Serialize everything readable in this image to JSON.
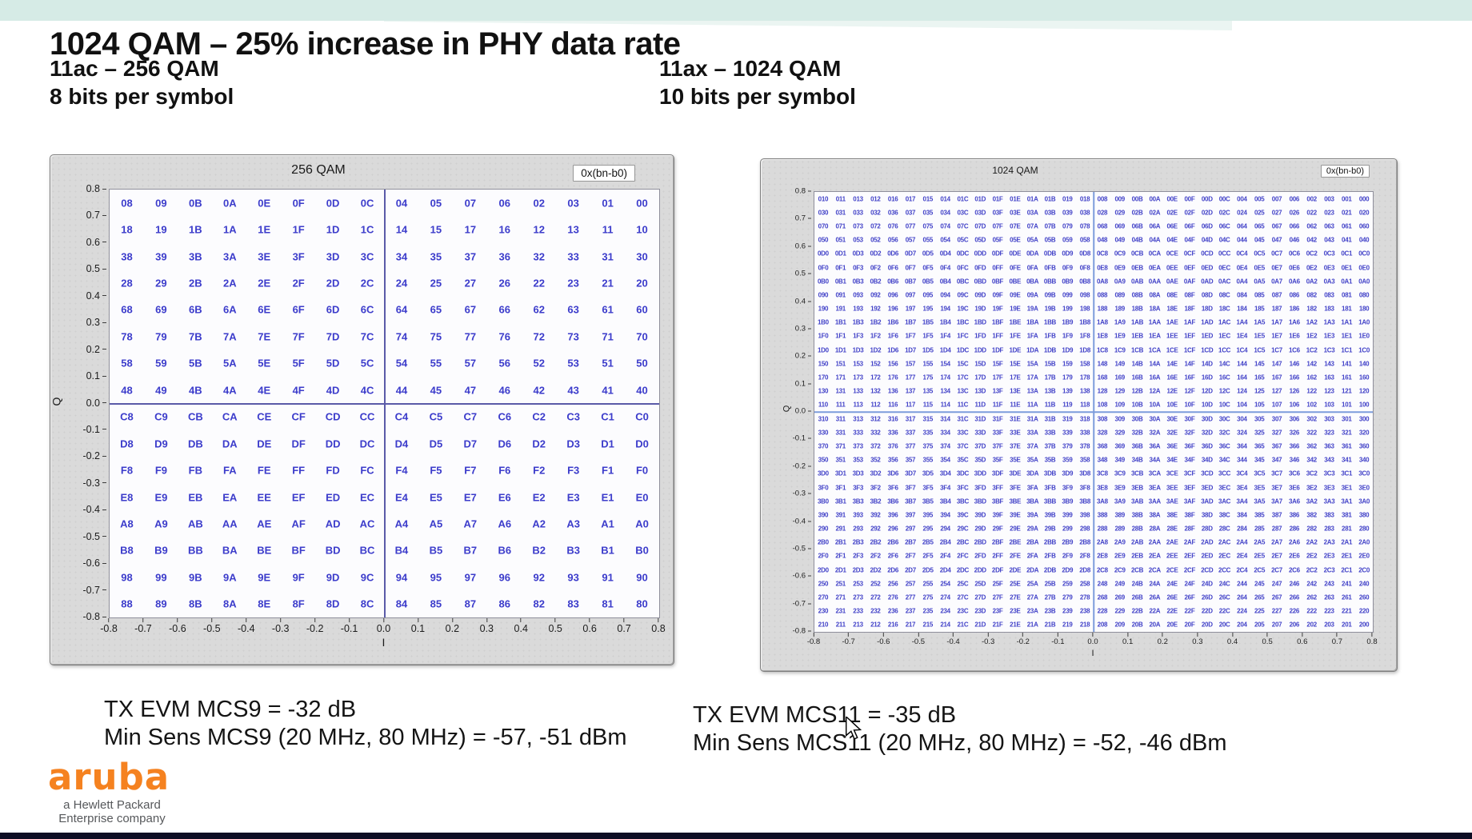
{
  "slide": {
    "title": "1024 QAM – 25% increase in PHY data rate",
    "left_subtitle_line1": "11ac – 256 QAM",
    "left_subtitle_line2": "8 bits per symbol",
    "right_subtitle_line1": "11ax – 1024 QAM",
    "right_subtitle_line2": "10 bits per symbol",
    "accent_band_color": "#d6ebe6",
    "accent_swoosh_color": "#e4f2ee",
    "bottom_bar_color": "#0d0d24"
  },
  "stats": {
    "left_line1": "TX EVM MCS9 = -32 dB",
    "left_line2": "Min Sens MCS9 (20 MHz, 80 MHz) = -57, -51 dBm",
    "right_line1": "TX EVM MCS11 = -35 dB",
    "right_line2": "Min Sens MCS11 (20 MHz, 80 MHz) = -52, -46 dBm"
  },
  "logo": {
    "brand": "aruba",
    "tagline_line1": "a Hewlett Packard",
    "tagline_line2": "Enterprise company",
    "brand_color": "#F58220",
    "tagline_color": "#56585b"
  },
  "chart_data": [
    {
      "type": "scatter",
      "standard": "11ac",
      "title": "256 QAM",
      "badge": "0x(bn-b0)",
      "xlabel": "I",
      "ylabel": "Q",
      "xlim": [
        -0.8,
        0.8
      ],
      "ylim": [
        -0.8,
        0.8
      ],
      "grid": "zero-axes-only",
      "symbol_color": "#3c3ccb",
      "zero_line_color": "#5a5aa8",
      "x_ticks": [
        "-0.8",
        "-0.7",
        "-0.6",
        "-0.5",
        "-0.4",
        "-0.3",
        "-0.2",
        "-0.1",
        "0.0",
        "0.1",
        "0.2",
        "0.3",
        "0.4",
        "0.5",
        "0.6",
        "0.7",
        "0.8"
      ],
      "y_ticks": [
        "0.8",
        "0.7",
        "0.6",
        "0.5",
        "0.4",
        "0.3",
        "0.2",
        "0.1",
        "0.0",
        "-0.1",
        "-0.2",
        "-0.3",
        "-0.4",
        "-0.5",
        "-0.6",
        "-0.7",
        "-0.8"
      ],
      "i_values": [
        -0.75,
        -0.65,
        -0.55,
        -0.45,
        -0.35,
        -0.25,
        -0.15,
        -0.05,
        0.05,
        0.15,
        0.25,
        0.35,
        0.45,
        0.55,
        0.65,
        0.75
      ],
      "q_values": [
        0.75,
        0.65,
        0.55,
        0.45,
        0.35,
        0.25,
        0.15,
        0.05,
        -0.05,
        -0.15,
        -0.25,
        -0.35,
        -0.45,
        -0.55,
        -0.65,
        -0.75
      ],
      "rows": [
        "08 09 0B 0A 0E 0F 0D 0C 04 05 07 06 02 03 01 00",
        "18 19 1B 1A 1E 1F 1D 1C 14 15 17 16 12 13 11 10",
        "38 39 3B 3A 3E 3F 3D 3C 34 35 37 36 32 33 31 30",
        "28 29 2B 2A 2E 2F 2D 2C 24 25 27 26 22 23 21 20",
        "68 69 6B 6A 6E 6F 6D 6C 64 65 67 66 62 63 61 60",
        "78 79 7B 7A 7E 7F 7D 7C 74 75 77 76 72 73 71 70",
        "58 59 5B 5A 5E 5F 5D 5C 54 55 57 56 52 53 51 50",
        "48 49 4B 4A 4E 4F 4D 4C 44 45 47 46 42 43 41 40",
        "C8 C9 CB CA CE CF CD CC C4 C5 C7 C6 C2 C3 C1 C0",
        "D8 D9 DB DA DE DF DD DC D4 D5 D7 D6 D2 D3 D1 D0",
        "F8 F9 FB FA FE FF FD FC F4 F5 F7 F6 F2 F3 F1 F0",
        "E8 E9 EB EA EE EF ED EC E4 E5 E7 E6 E2 E3 E1 E0",
        "A8 A9 AB AA AE AF AD AC A4 A5 A7 A6 A2 A3 A1 A0",
        "B8 B9 BB BA BE BF BD BC B4 B5 B7 B6 B2 B3 B1 B0",
        "98 99 9B 9A 9E 9F 9D 9C 94 95 97 96 92 93 91 90",
        "88 89 8B 8A 8E 8F 8D 8C 84 85 87 86 82 83 81 80"
      ]
    },
    {
      "type": "scatter",
      "standard": "11ax",
      "title": "1024 QAM",
      "badge": "0x(bn-b0)",
      "xlabel": "I",
      "ylabel": "Q",
      "xlim": [
        -0.8,
        0.8
      ],
      "ylim": [
        -0.8,
        0.8
      ],
      "grid": "zero-axes-only",
      "symbol_color": "#4242c8",
      "zero_line_color": "#7d9cdb",
      "x_ticks": [
        "-0.8",
        "-0.7",
        "-0.6",
        "-0.5",
        "-0.4",
        "-0.3",
        "-0.2",
        "-0.1",
        "0.0",
        "0.1",
        "0.2",
        "0.3",
        "0.4",
        "0.5",
        "0.6",
        "0.7",
        "0.8"
      ],
      "y_ticks": [
        "0.8",
        "0.7",
        "0.6",
        "0.5",
        "0.4",
        "0.3",
        "0.2",
        "0.1",
        "0.0",
        "-0.1",
        "-0.2",
        "-0.3",
        "-0.4",
        "-0.5",
        "-0.6",
        "-0.7",
        "-0.8"
      ],
      "i_values": [
        -0.775,
        -0.725,
        -0.675,
        -0.625,
        -0.575,
        -0.525,
        -0.475,
        -0.425,
        -0.375,
        -0.325,
        -0.275,
        -0.225,
        -0.175,
        -0.125,
        -0.075,
        -0.025,
        0.025,
        0.075,
        0.125,
        0.175,
        0.225,
        0.275,
        0.325,
        0.375,
        0.425,
        0.475,
        0.525,
        0.575,
        0.625,
        0.675,
        0.725,
        0.775
      ],
      "q_values": [
        0.775,
        0.725,
        0.675,
        0.625,
        0.575,
        0.525,
        0.475,
        0.425,
        0.375,
        0.325,
        0.275,
        0.225,
        0.175,
        0.125,
        0.075,
        0.025,
        -0.025,
        -0.075,
        -0.125,
        -0.175,
        -0.225,
        -0.275,
        -0.325,
        -0.375,
        -0.425,
        -0.475,
        -0.525,
        -0.575,
        -0.625,
        -0.675,
        -0.725,
        -0.775
      ],
      "rows": [
        "010 011 013 012 016 017 015 014 01C 01D 01F 01E 01A 01B 019 018 008 009 00B 00A 00E 00F 00D 00C 004 005 007 006 002 003 001 000",
        "030 031 033 032 036 037 035 034 03C 03D 03F 03E 03A 03B 039 038 028 029 02B 02A 02E 02F 02D 02C 024 025 027 026 022 023 021 020",
        "070 071 073 072 076 077 075 074 07C 07D 07F 07E 07A 07B 079 078 068 069 06B 06A 06E 06F 06D 06C 064 065 067 066 062 063 061 060",
        "050 051 053 052 056 057 055 054 05C 05D 05F 05E 05A 05B 059 058 048 049 04B 04A 04E 04F 04D 04C 044 045 047 046 042 043 041 040",
        "0D0 0D1 0D3 0D2 0D6 0D7 0D5 0D4 0DC 0DD 0DF 0DE 0DA 0DB 0D9 0D8 0C8 0C9 0CB 0CA 0CE 0CF 0CD 0CC 0C4 0C5 0C7 0C6 0C2 0C3 0C1 0C0",
        "0F0 0F1 0F3 0F2 0F6 0F7 0F5 0F4 0FC 0FD 0FF 0FE 0FA 0FB 0F9 0F8 0E8 0E9 0EB 0EA 0EE 0EF 0ED 0EC 0E4 0E5 0E7 0E6 0E2 0E3 0E1 0E0",
        "0B0 0B1 0B3 0B2 0B6 0B7 0B5 0B4 0BC 0BD 0BF 0BE 0BA 0BB 0B9 0B8 0A8 0A9 0AB 0AA 0AE 0AF 0AD 0AC 0A4 0A5 0A7 0A6 0A2 0A3 0A1 0A0",
        "090 091 093 092 096 097 095 094 09C 09D 09F 09E 09A 09B 099 098 088 089 08B 08A 08E 08F 08D 08C 084 085 087 086 082 083 081 080",
        "190 191 193 192 196 197 195 194 19C 19D 19F 19E 19A 19B 199 198 188 189 18B 18A 18E 18F 18D 18C 184 185 187 186 182 183 181 180",
        "1B0 1B1 1B3 1B2 1B6 1B7 1B5 1B4 1BC 1BD 1BF 1BE 1BA 1BB 1B9 1B8 1A8 1A9 1AB 1AA 1AE 1AF 1AD 1AC 1A4 1A5 1A7 1A6 1A2 1A3 1A1 1A0",
        "1F0 1F1 1F3 1F2 1F6 1F7 1F5 1F4 1FC 1FD 1FF 1FE 1FA 1FB 1F9 1F8 1E8 1E9 1EB 1EA 1EE 1EF 1ED 1EC 1E4 1E5 1E7 1E6 1E2 1E3 1E1 1E0",
        "1D0 1D1 1D3 1D2 1D6 1D7 1D5 1D4 1DC 1DD 1DF 1DE 1DA 1DB 1D9 1D8 1C8 1C9 1CB 1CA 1CE 1CF 1CD 1CC 1C4 1C5 1C7 1C6 1C2 1C3 1C1 1C0",
        "150 151 153 152 156 157 155 154 15C 15D 15F 15E 15A 15B 159 158 148 149 14B 14A 14E 14F 14D 14C 144 145 147 146 142 143 141 140",
        "170 171 173 172 176 177 175 174 17C 17D 17F 17E 17A 17B 179 178 168 169 16B 16A 16E 16F 16D 16C 164 165 167 166 162 163 161 160",
        "130 131 133 132 136 137 135 134 13C 13D 13F 13E 13A 13B 139 138 128 129 12B 12A 12E 12F 12D 12C 124 125 127 126 122 123 121 120",
        "110 111 113 112 116 117 115 114 11C 11D 11F 11E 11A 11B 119 118 108 109 10B 10A 10E 10F 10D 10C 104 105 107 106 102 103 101 100",
        "310 311 313 312 316 317 315 314 31C 31D 31F 31E 31A 31B 319 318 308 309 30B 30A 30E 30F 30D 30C 304 305 307 306 302 303 301 300",
        "330 331 333 332 336 337 335 334 33C 33D 33F 33E 33A 33B 339 338 328 329 32B 32A 32E 32F 32D 32C 324 325 327 326 322 323 321 320",
        "370 371 373 372 376 377 375 374 37C 37D 37F 37E 37A 37B 379 378 368 369 36B 36A 36E 36F 36D 36C 364 365 367 366 362 363 361 360",
        "350 351 353 352 356 357 355 354 35C 35D 35F 35E 35A 35B 359 358 348 349 34B 34A 34E 34F 34D 34C 344 345 347 346 342 343 341 340",
        "3D0 3D1 3D3 3D2 3D6 3D7 3D5 3D4 3DC 3DD 3DF 3DE 3DA 3DB 3D9 3D8 3C8 3C9 3CB 3CA 3CE 3CF 3CD 3CC 3C4 3C5 3C7 3C6 3C2 3C3 3C1 3C0",
        "3F0 3F1 3F3 3F2 3F6 3F7 3F5 3F4 3FC 3FD 3FF 3FE 3FA 3FB 3F9 3F8 3E8 3E9 3EB 3EA 3EE 3EF 3ED 3EC 3E4 3E5 3E7 3E6 3E2 3E3 3E1 3E0",
        "3B0 3B1 3B3 3B2 3B6 3B7 3B5 3B4 3BC 3BD 3BF 3BE 3BA 3BB 3B9 3B8 3A8 3A9 3AB 3AA 3AE 3AF 3AD 3AC 3A4 3A5 3A7 3A6 3A2 3A3 3A1 3A0",
        "390 391 393 392 396 397 395 394 39C 39D 39F 39E 39A 39B 399 398 388 389 38B 38A 38E 38F 38D 38C 384 385 387 386 382 383 381 380",
        "290 291 293 292 296 297 295 294 29C 29D 29F 29E 29A 29B 299 298 288 289 28B 28A 28E 28F 28D 28C 284 285 287 286 282 283 281 280",
        "2B0 2B1 2B3 2B2 2B6 2B7 2B5 2B4 2BC 2BD 2BF 2BE 2BA 2BB 2B9 2B8 2A8 2A9 2AB 2AA 2AE 2AF 2AD 2AC 2A4 2A5 2A7 2A6 2A2 2A3 2A1 2A0",
        "2F0 2F1 2F3 2F2 2F6 2F7 2F5 2F4 2FC 2FD 2FF 2FE 2FA 2FB 2F9 2F8 2E8 2E9 2EB 2EA 2EE 2EF 2ED 2EC 2E4 2E5 2E7 2E6 2E2 2E3 2E1 2E0",
        "2D0 2D1 2D3 2D2 2D6 2D7 2D5 2D4 2DC 2DD 2DF 2DE 2DA 2DB 2D9 2D8 2C8 2C9 2CB 2CA 2CE 2CF 2CD 2CC 2C4 2C5 2C7 2C6 2C2 2C3 2C1 2C0",
        "250 251 253 252 256 257 255 254 25C 25D 25F 25E 25A 25B 259 258 248 249 24B 24A 24E 24F 24D 24C 244 245 247 246 242 243 241 240",
        "270 271 273 272 276 277 275 274 27C 27D 27F 27E 27A 27B 279 278 268 269 26B 26A 26E 26F 26D 26C 264 265 267 266 262 263 261 260",
        "230 231 233 232 236 237 235 234 23C 23D 23F 23E 23A 23B 239 238 228 229 22B 22A 22E 22F 22D 22C 224 225 227 226 222 223 221 220",
        "210 211 213 212 216 217 215 214 21C 21D 21F 21E 21A 21B 219 218 208 209 20B 20A 20E 20F 20D 20C 204 205 207 206 202 203 201 200"
      ]
    }
  ]
}
